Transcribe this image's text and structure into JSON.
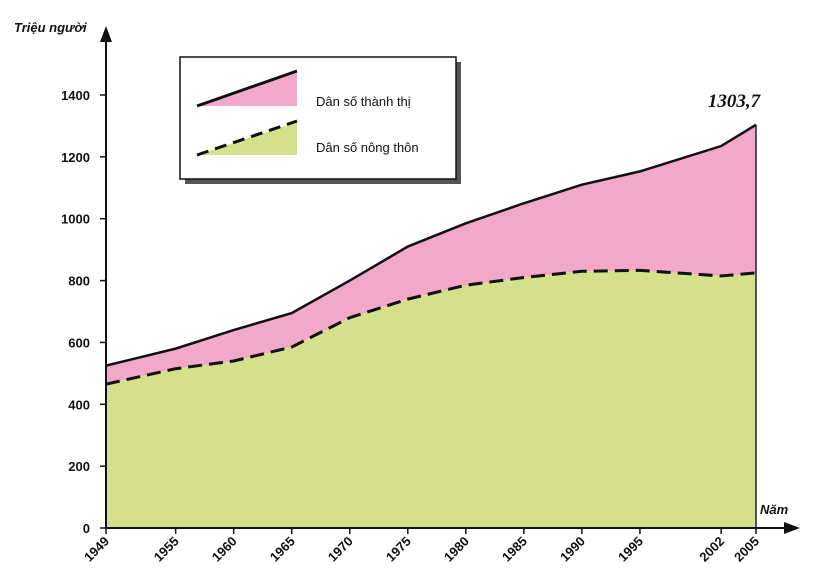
{
  "chart_data": {
    "type": "area",
    "ylabel": "Triệu người",
    "xlabel": "Năm",
    "x": [
      1949,
      1955,
      1960,
      1965,
      1970,
      1975,
      1980,
      1985,
      1990,
      1995,
      2002,
      2005
    ],
    "x_tick_labels": [
      "1949",
      "1955",
      "1960",
      "1965",
      "1970",
      "1975",
      "1980",
      "1985",
      "1990",
      "1995",
      "2002",
      "2005"
    ],
    "ylim": [
      0,
      1500
    ],
    "y_ticks": [
      0,
      200,
      400,
      600,
      800,
      1000,
      1200,
      1400
    ],
    "y_tick_labels": [
      "0",
      "200",
      "400",
      "600",
      "800",
      "1000",
      "1200",
      "1400"
    ],
    "series": [
      {
        "name": "Dân số nông thôn",
        "color": "#d4e08c",
        "line_style": "dashed",
        "values": [
          465,
          515,
          540,
          585,
          680,
          740,
          785,
          810,
          830,
          833,
          815,
          825
        ]
      },
      {
        "name": "Dân số thành thị",
        "color": "#f2a8c8",
        "line_style": "solid",
        "values": [
          60,
          65,
          100,
          110,
          120,
          170,
          200,
          240,
          280,
          320,
          420,
          478.7
        ]
      }
    ],
    "total_line_color": "#111111",
    "stacked": true,
    "annotations": [
      {
        "text": "1303,7",
        "x": 2005,
        "y": 1303.7
      }
    ],
    "legend": {
      "placement": "top-left",
      "entries": [
        "Dân số thành thị",
        "Dân số nông thôn"
      ]
    },
    "grid": false
  }
}
